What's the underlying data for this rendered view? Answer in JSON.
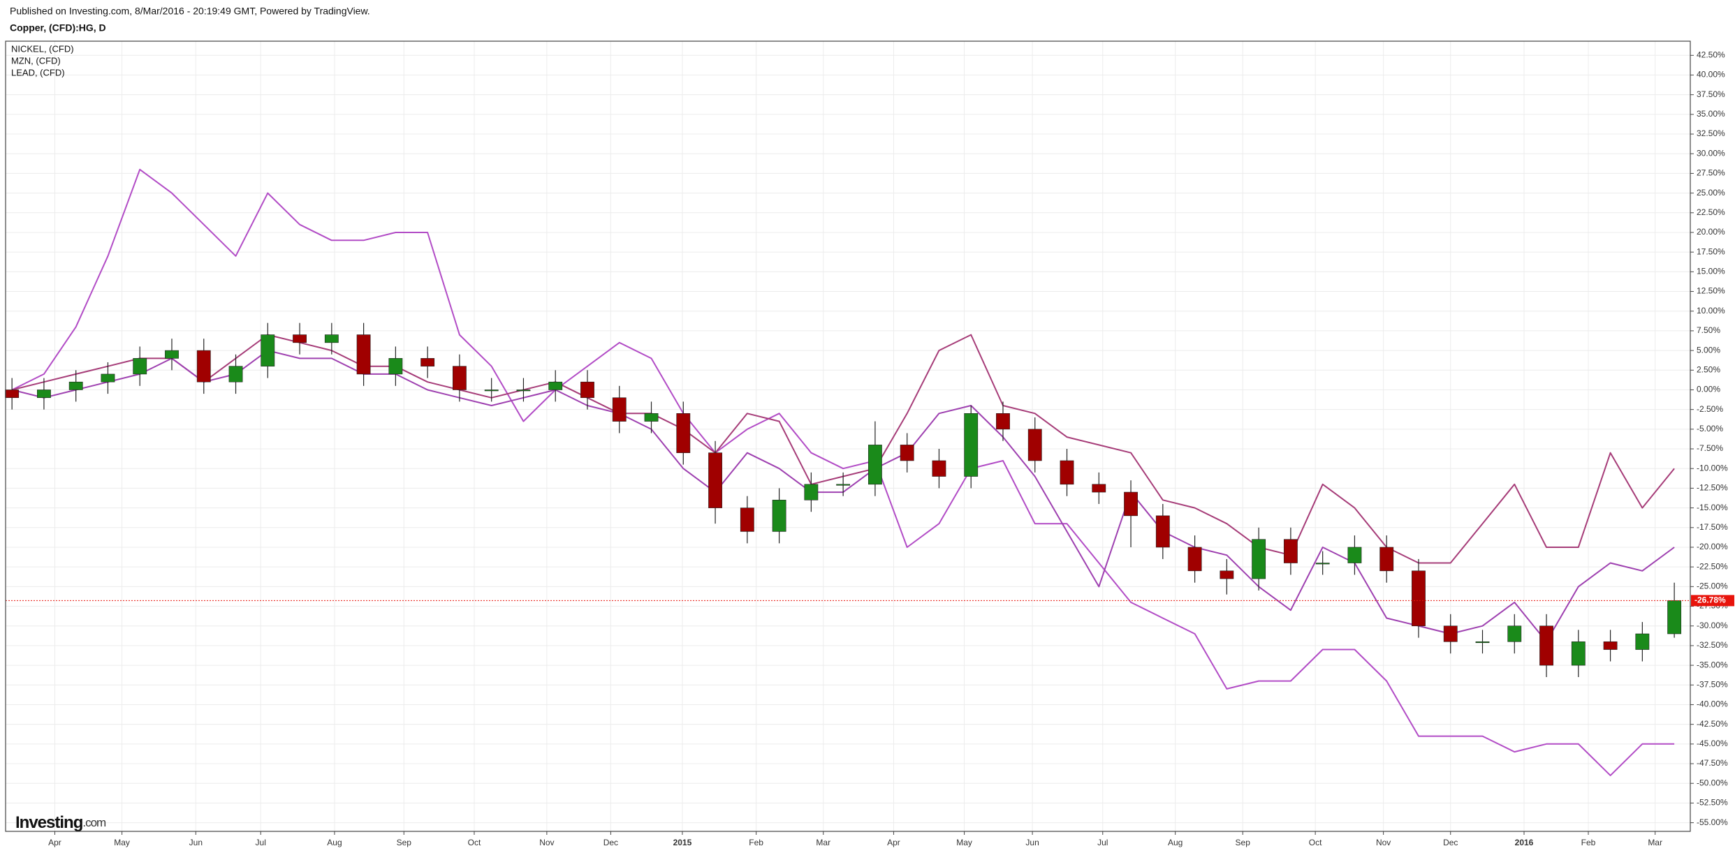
{
  "chart_data": {
    "type": "candlestick",
    "header": "Published on Investing.com, 8/Mar/2016 - 20:19:49 GMT, Powered by TradingView.",
    "title": "Copper, (CFD):HG, D",
    "branding": {
      "name": "Investing",
      "suffix": ".com"
    },
    "up_color": "#1a8a1a",
    "down_color": "#a00000",
    "open": [
      0,
      -1,
      0,
      1,
      2,
      4,
      5,
      1,
      3,
      7,
      6,
      7,
      2,
      4,
      3,
      0,
      0,
      0,
      1,
      -1,
      -4,
      -3,
      -8,
      -15,
      -18,
      -14,
      -12,
      -12,
      -7,
      -9,
      -11,
      -3,
      -5,
      -9,
      -12,
      -13,
      -16,
      -20,
      -23,
      -24,
      -19,
      -22,
      -22,
      -20,
      -23,
      -30,
      -32,
      -32,
      -30,
      -35,
      -32,
      -33,
      -31
    ],
    "high": [
      1.5,
      1.5,
      2.5,
      3.5,
      5.5,
      6.5,
      6.5,
      4.5,
      8.5,
      8.5,
      8.5,
      8.5,
      5.5,
      5.5,
      4.5,
      1.5,
      1.5,
      2.5,
      2.5,
      0.5,
      -1.5,
      -1.5,
      -6.5,
      -13.5,
      -12.5,
      -10.5,
      -10.5,
      -4,
      -5.5,
      -7.5,
      -2,
      -1.5,
      -3.5,
      -7.5,
      -10.5,
      -11.5,
      -14.5,
      -18.5,
      -21.5,
      -17.5,
      -17.5,
      -20.5,
      -18.5,
      -18.5,
      -21.5,
      -28.5,
      -30.5,
      -28.5,
      -28.5,
      -30.5,
      -30.5,
      -29.5,
      -24.5
    ],
    "low": [
      -2.5,
      -2.5,
      -1.5,
      -0.5,
      0.5,
      2.5,
      -0.5,
      -0.5,
      1.5,
      4.5,
      4.5,
      0.5,
      0.5,
      1.5,
      -1.5,
      -1.5,
      -1.5,
      -1.5,
      -2.5,
      -5.5,
      -5.5,
      -9.5,
      -17,
      -19.5,
      -19.5,
      -15.5,
      -13.5,
      -13.5,
      -10.5,
      -12.5,
      -12.5,
      -6.5,
      -10.5,
      -13.5,
      -14.5,
      -20,
      -21.5,
      -24.5,
      -26,
      -25.5,
      -23.5,
      -23.5,
      -23.5,
      -24.5,
      -31.5,
      -33.5,
      -33.5,
      -33.5,
      -36.5,
      -36.5,
      -34.5,
      -34.5,
      -31.5
    ],
    "close": [
      -1,
      0,
      1,
      2,
      4,
      5,
      1,
      3,
      7,
      6,
      7,
      2,
      4,
      3,
      0,
      0,
      0,
      1,
      -1,
      -4,
      -3,
      -8,
      -15,
      -18,
      -14,
      -12,
      -12,
      -7,
      -9,
      -11,
      -3,
      -5,
      -9,
      -12,
      -13,
      -16,
      -20,
      -23,
      -24,
      -19,
      -22,
      -22,
      -20,
      -23,
      -30,
      -32,
      -32,
      -30,
      -35,
      -32,
      -33,
      -31,
      -26.78
    ],
    "last_price": {
      "value": -26.78,
      "label": "-26.78%",
      "color": "#e8140c"
    },
    "series": [
      {
        "name": "NICKEL,  (CFD)",
        "color": "#b24cc6",
        "values": [
          0,
          2,
          8,
          17,
          28,
          25,
          21,
          17,
          25,
          21,
          19,
          19,
          20,
          20,
          7,
          3,
          -4,
          0,
          3,
          6,
          4,
          -3,
          -8,
          -5,
          -3,
          -8,
          -10,
          -9,
          -20,
          -17,
          -10,
          -9,
          -17,
          -17,
          -22,
          -27,
          -29,
          -31,
          -38,
          -37,
          -37,
          -33,
          -33,
          -37,
          -44,
          -44,
          -44,
          -46,
          -45,
          -45,
          -49,
          -45,
          -45
        ]
      },
      {
        "name": "MZN,  (CFD)",
        "color": "#a63c78",
        "values": [
          0,
          1,
          2,
          3,
          4,
          4,
          1,
          4,
          7,
          6,
          5,
          3,
          3,
          1,
          0,
          -1,
          0,
          1,
          -1,
          -3,
          -3,
          -5,
          -8,
          -3,
          -4,
          -12,
          -11,
          -10,
          -3,
          5,
          7,
          -2,
          -3,
          -6,
          -7,
          -8,
          -14,
          -15,
          -17,
          -20,
          -21,
          -12,
          -15,
          -20,
          -22,
          -22,
          -17,
          -12,
          -20,
          -20,
          -8,
          -15,
          -10
        ]
      },
      {
        "name": "LEAD,  (CFD)",
        "color": "#9e40b0",
        "values": [
          0,
          -1,
          0,
          1,
          2,
          4,
          1,
          2,
          5,
          4,
          4,
          2,
          2,
          0,
          -1,
          -2,
          -1,
          0,
          -2,
          -3,
          -5,
          -10,
          -13,
          -8,
          -10,
          -13,
          -13,
          -10,
          -8,
          -3,
          -2,
          -6,
          -11,
          -18,
          -25,
          -13,
          -18,
          -20,
          -21,
          -25,
          -28,
          -20,
          -22,
          -29,
          -30,
          -31,
          -30,
          -27,
          -32,
          -25,
          -22,
          -23,
          -20
        ]
      }
    ],
    "xlim": [
      -0.2,
      52.5
    ],
    "xticks": [
      {
        "value": 1.34,
        "label": "Apr"
      },
      {
        "value": 3.44,
        "label": "May"
      },
      {
        "value": 5.75,
        "label": "Jun"
      },
      {
        "value": 7.78,
        "label": "Jul"
      },
      {
        "value": 10.09,
        "label": "Aug"
      },
      {
        "value": 12.26,
        "label": "Sep"
      },
      {
        "value": 14.46,
        "label": "Oct"
      },
      {
        "value": 16.73,
        "label": "Nov"
      },
      {
        "value": 18.73,
        "label": "Dec"
      },
      {
        "value": 20.97,
        "label": "2015"
      },
      {
        "value": 23.28,
        "label": "Feb"
      },
      {
        "value": 25.38,
        "label": "Mar"
      },
      {
        "value": 27.58,
        "label": "Apr"
      },
      {
        "value": 29.79,
        "label": "May"
      },
      {
        "value": 31.92,
        "label": "Jun"
      },
      {
        "value": 34.12,
        "label": "Jul"
      },
      {
        "value": 36.39,
        "label": "Aug"
      },
      {
        "value": 38.5,
        "label": "Sep"
      },
      {
        "value": 40.77,
        "label": "Oct"
      },
      {
        "value": 42.9,
        "label": "Nov"
      },
      {
        "value": 45.0,
        "label": "Dec"
      },
      {
        "value": 47.3,
        "label": "2016"
      },
      {
        "value": 49.31,
        "label": "Feb"
      },
      {
        "value": 51.4,
        "label": "Mar"
      }
    ],
    "ylim": [
      -56.1,
      44.3
    ],
    "yticks": [
      {
        "value": 42.5,
        "label": "42.50%"
      },
      {
        "value": 40,
        "label": "40.00%"
      },
      {
        "value": 37.5,
        "label": "37.50%"
      },
      {
        "value": 35,
        "label": "35.00%"
      },
      {
        "value": 32.5,
        "label": "32.50%"
      },
      {
        "value": 30,
        "label": "30.00%"
      },
      {
        "value": 27.5,
        "label": "27.50%"
      },
      {
        "value": 25,
        "label": "25.00%"
      },
      {
        "value": 22.5,
        "label": "22.50%"
      },
      {
        "value": 20,
        "label": "20.00%"
      },
      {
        "value": 17.5,
        "label": "17.50%"
      },
      {
        "value": 15,
        "label": "15.00%"
      },
      {
        "value": 12.5,
        "label": "12.50%"
      },
      {
        "value": 10,
        "label": "10.00%"
      },
      {
        "value": 7.5,
        "label": "7.50%"
      },
      {
        "value": 5,
        "label": "5.00%"
      },
      {
        "value": 2.5,
        "label": "2.50%"
      },
      {
        "value": 0,
        "label": "0.00%"
      },
      {
        "value": -2.5,
        "label": "-2.50%"
      },
      {
        "value": -5,
        "label": "-5.00%"
      },
      {
        "value": -7.5,
        "label": "-7.50%"
      },
      {
        "value": -10,
        "label": "-10.00%"
      },
      {
        "value": -12.5,
        "label": "-12.50%"
      },
      {
        "value": -15,
        "label": "-15.00%"
      },
      {
        "value": -17.5,
        "label": "-17.50%"
      },
      {
        "value": -20,
        "label": "-20.00%"
      },
      {
        "value": -22.5,
        "label": "-22.50%"
      },
      {
        "value": -25,
        "label": "-25.00%"
      },
      {
        "value": -27.5,
        "label": "-27.50%"
      },
      {
        "value": -30,
        "label": "-30.00%"
      },
      {
        "value": -32.5,
        "label": "-32.50%"
      },
      {
        "value": -35,
        "label": "-35.00%"
      },
      {
        "value": -37.5,
        "label": "-37.50%"
      },
      {
        "value": -40,
        "label": "-40.00%"
      },
      {
        "value": -42.5,
        "label": "-42.50%"
      },
      {
        "value": -45,
        "label": "-45.00%"
      },
      {
        "value": -47.5,
        "label": "-47.50%"
      },
      {
        "value": -50,
        "label": "-50.00%"
      },
      {
        "value": -52.5,
        "label": "-52.50%"
      },
      {
        "value": -55,
        "label": "-55.00%"
      }
    ],
    "grid": true
  }
}
